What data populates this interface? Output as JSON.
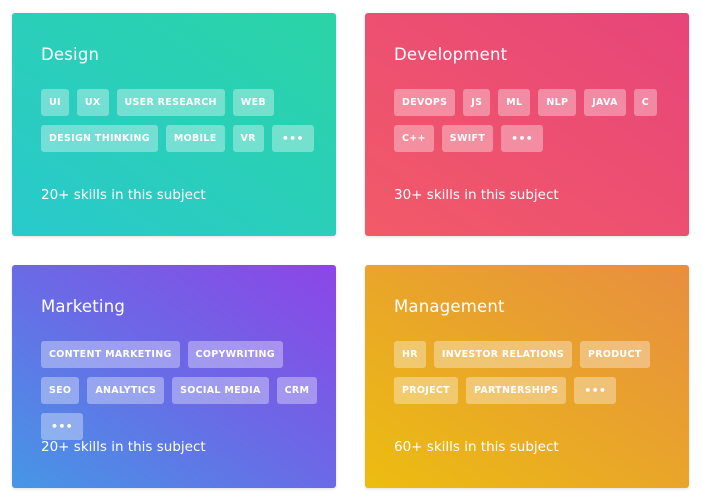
{
  "subjects": [
    {
      "title": "Design",
      "tags": [
        "UI",
        "UX",
        "USER RESEARCH",
        "WEB",
        "DESIGN THINKING",
        "MOBILE",
        "VR"
      ],
      "more": "•••",
      "footer": "20+ skills in this subject"
    },
    {
      "title": "Development",
      "tags": [
        "DEVOPS",
        "JS",
        "ML",
        "NLP",
        "JAVA",
        "C",
        "C++",
        "SWIFT"
      ],
      "more": "•••",
      "footer": "30+ skills in this subject"
    },
    {
      "title": "Marketing",
      "tags": [
        "CONTENT MARKETING",
        "COPYWRITING",
        "SEO",
        "ANALYTICS",
        "SOCIAL MEDIA",
        "CRM"
      ],
      "more": "•••",
      "footer": "20+ skills in this subject"
    },
    {
      "title": "Management",
      "tags": [
        "HR",
        "INVESTOR RELATIONS",
        "PRODUCT",
        "PROJECT",
        "PARTNERSHIPS"
      ],
      "more": "•••",
      "footer": "60+ skills in this subject"
    }
  ],
  "colors": {
    "design": "#2bcfba",
    "development": "#ec5071",
    "marketing": "#6a6ae6",
    "management": "#e9a52a"
  }
}
